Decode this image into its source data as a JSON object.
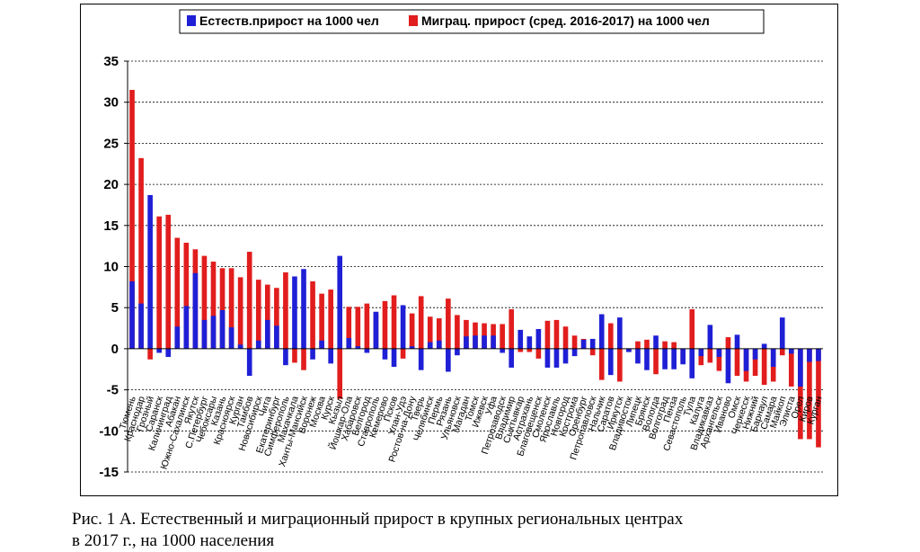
{
  "caption": {
    "line1": "Рис. 1 А. Естественный и миграционный прирост в крупных региональных центрах",
    "line2": "в 2017 г., на 1000 населения"
  },
  "chart_data": {
    "type": "bar",
    "title": "",
    "xlabel": "",
    "ylabel": "",
    "ylim": [
      -15,
      35
    ],
    "yticks": [
      -15,
      -10,
      -5,
      0,
      5,
      10,
      15,
      20,
      25,
      30,
      35
    ],
    "grid": true,
    "legend_position": "top",
    "overlapping": true,
    "categories": [
      "Тюмень",
      "Краснодар",
      "Грозный",
      "Саранск",
      "Калининград",
      "Абакан",
      "Южно-Сахалинск",
      "Якутск",
      "С.Петербург",
      "Чебоксары",
      "Казань",
      "Красноярск",
      "Курган",
      "Тамбов",
      "Новосибирск",
      "Чита",
      "Екатеринбург",
      "Симферополь",
      "Махачкала",
      "Ханты-Мансийск",
      "Воронеж",
      "Москва",
      "Курск",
      "Кызыл",
      "Йошкар-Ола",
      "Хабаровск",
      "Белгород",
      "Ставрополь",
      "Кемерово",
      "Псков",
      "Улан-Удэ",
      "Ростов-на-Дону",
      "Тверь",
      "Челябинск",
      "Пермь",
      "Рязань",
      "Ульяновск",
      "Магадан",
      "Томск",
      "Ижевск",
      "Уфа",
      "Петрозаводск",
      "Владимир",
      "Сыктывкар",
      "Астрахань",
      "Благовещенск",
      "Смоленск",
      "Ярославль",
      "Новгород",
      "Кострома",
      "Оренбург",
      "Петропавловск",
      "Нальчик",
      "Саратов",
      "Иркутск",
      "Владивосток",
      "Липецк",
      "Брянск",
      "Вологда",
      "Волгоград",
      "Пенза",
      "Севастополь",
      "Тула",
      "Калуга",
      "Владикавказ",
      "Архангельск",
      "Иваново",
      "Омск",
      "Черкесск",
      "Нижний",
      "Барнаул",
      "Самара",
      "Майкоп",
      "Элиста",
      "Орел",
      "Киров",
      "Курган"
    ],
    "series": [
      {
        "name": "Естеств.прирост на 1000 чел",
        "color": "#1f1fd6",
        "values": [
          8.2,
          5.5,
          18.7,
          -0.5,
          -1.0,
          2.7,
          5.2,
          9.2,
          3.5,
          4.0,
          4.7,
          2.6,
          0.5,
          -3.3,
          1.0,
          3.5,
          2.8,
          -2.0,
          8.8,
          9.7,
          -1.3,
          1.0,
          -1.8,
          11.3,
          1.3,
          0.3,
          -0.5,
          4.5,
          -1.3,
          -2.2,
          5.3,
          0.3,
          -2.6,
          0.8,
          1.0,
          -2.8,
          -0.8,
          1.5,
          1.6,
          1.6,
          1.6,
          -0.5,
          -2.3,
          2.3,
          1.5,
          2.4,
          -2.3,
          -2.3,
          -1.8,
          -0.9,
          1.1,
          1.2,
          4.2,
          -3.2,
          3.8,
          -0.4,
          -1.8,
          -2.6,
          1.6,
          -2.5,
          -2.5,
          -1.9,
          -3.6,
          -0.9,
          2.9,
          -1.0,
          -4.2,
          1.7,
          -2.7,
          -1.3,
          0.6,
          -2.2,
          3.8,
          -0.6,
          -4.6,
          -1.6,
          -1.5
        ]
      },
      {
        "name": "Миграц. прирост (сред. 2016-2017) на 1000 чел",
        "color": "#e11d1d",
        "values": [
          31.5,
          23.2,
          -1.3,
          16.1,
          16.3,
          13.5,
          12.9,
          12.1,
          11.3,
          10.6,
          9.8,
          9.8,
          8.7,
          11.8,
          8.4,
          7.8,
          7.4,
          9.3,
          -1.7,
          -2.6,
          8.2,
          6.7,
          7.2,
          -6.1,
          5.1,
          5.1,
          5.5,
          4.3,
          5.8,
          6.5,
          -1.2,
          4.3,
          6.4,
          3.9,
          3.7,
          6.1,
          4.1,
          3.5,
          3.2,
          3.1,
          3.0,
          3.0,
          4.8,
          -0.4,
          -0.4,
          -1.2,
          3.4,
          3.5,
          2.7,
          1.6,
          1.2,
          -0.8,
          -3.8,
          3.1,
          -4.0,
          -0.4,
          0.9,
          1.1,
          -3.1,
          0.9,
          0.8,
          -1.7,
          4.8,
          -2.0,
          -1.7,
          -2.7,
          1.4,
          -3.3,
          -4.0,
          -3.3,
          -4.4,
          -4.0,
          -0.8,
          -4.6,
          -11.0,
          -11.0,
          -12.0
        ]
      }
    ]
  }
}
